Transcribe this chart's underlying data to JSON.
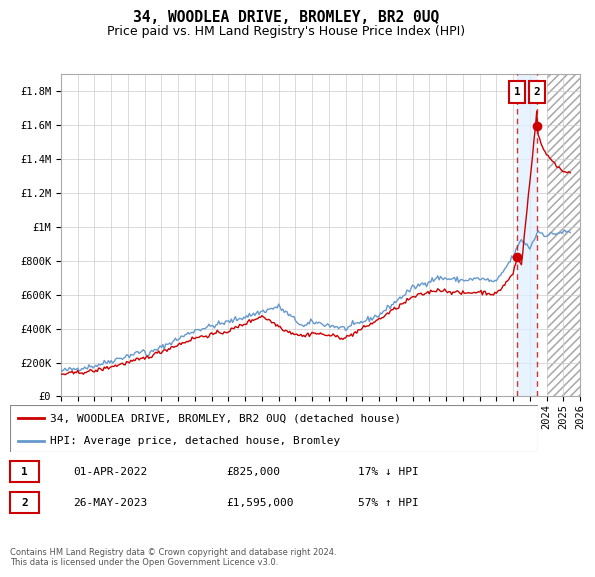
{
  "title": "34, WOODLEA DRIVE, BROMLEY, BR2 0UQ",
  "subtitle": "Price paid vs. HM Land Registry's House Price Index (HPI)",
  "ylabel_ticks": [
    "£0",
    "£200K",
    "£400K",
    "£600K",
    "£800K",
    "£1M",
    "£1.2M",
    "£1.4M",
    "£1.6M",
    "£1.8M"
  ],
  "ytick_values": [
    0,
    200000,
    400000,
    600000,
    800000,
    1000000,
    1200000,
    1400000,
    1600000,
    1800000
  ],
  "ymax": 1900000,
  "xmin": 1995.0,
  "xmax": 2026.0,
  "hpi_color": "#6699cc",
  "price_color": "#cc0000",
  "grid_color": "#cccccc",
  "background_color": "#ffffff",
  "transaction1_year": 2022.25,
  "transaction1_price": 825000,
  "transaction2_year": 2023.42,
  "transaction2_price": 1595000,
  "shade_color": "#ddeeff",
  "hatch_color": "#cccccc",
  "legend_label_price": "34, WOODLEA DRIVE, BROMLEY, BR2 0UQ (detached house)",
  "legend_label_hpi": "HPI: Average price, detached house, Bromley",
  "trans1_label": "1",
  "trans1_date": "01-APR-2022",
  "trans1_price_str": "£825,000",
  "trans1_hpi_str": "17% ↓ HPI",
  "trans2_label": "2",
  "trans2_date": "26-MAY-2023",
  "trans2_price_str": "£1,595,000",
  "trans2_hpi_str": "57% ↑ HPI",
  "footer": "Contains HM Land Registry data © Crown copyright and database right 2024.\nThis data is licensed under the Open Government Licence v3.0.",
  "title_fontsize": 10.5,
  "subtitle_fontsize": 9,
  "tick_fontsize": 7.5,
  "legend_fontsize": 8
}
